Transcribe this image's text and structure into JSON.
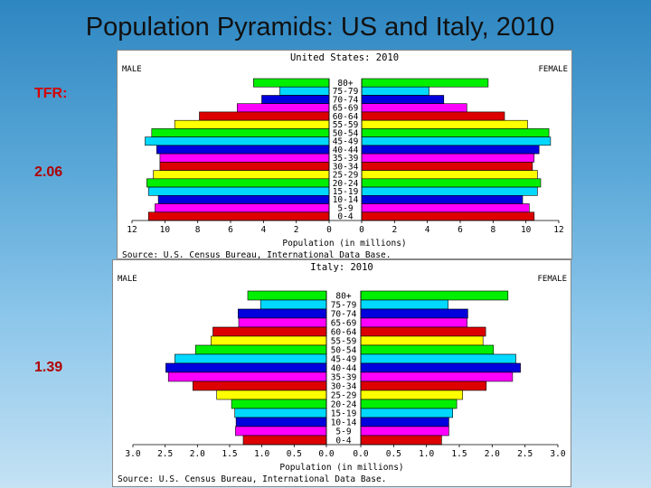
{
  "slide": {
    "title": "Population Pyramids: US and Italy, 2010",
    "labels": {
      "tfr": "TFR:",
      "us_tfr": "2.06",
      "italy_tfr": "1.39"
    },
    "colors": {
      "tfr_label": "#d40000",
      "us_tfr": "#b00000",
      "italy_tfr": "#b00000"
    }
  },
  "chart_data": [
    {
      "type": "bar",
      "title": "United States: 2010",
      "male_label": "MALE",
      "female_label": "FEMALE",
      "xlabel": "Population (in millions)",
      "source": "Source: U.S. Census Bureau, International Data Base.",
      "categories": [
        "80+",
        "75-79",
        "70-74",
        "65-69",
        "60-64",
        "55-59",
        "50-54",
        "45-49",
        "40-44",
        "35-39",
        "30-34",
        "25-29",
        "20-24",
        "15-19",
        "10-14",
        "5-9",
        "0-4"
      ],
      "series": [
        {
          "name": "MALE",
          "values": [
            4.6,
            3.0,
            4.1,
            5.6,
            7.9,
            9.4,
            10.8,
            11.2,
            10.5,
            10.3,
            10.3,
            10.7,
            11.1,
            11.0,
            10.4,
            10.6,
            11.0
          ]
        },
        {
          "name": "FEMALE",
          "values": [
            7.7,
            4.1,
            5.0,
            6.4,
            8.7,
            10.1,
            11.4,
            11.5,
            10.8,
            10.5,
            10.4,
            10.7,
            10.9,
            10.7,
            9.8,
            10.2,
            10.5
          ]
        }
      ],
      "xlim": [
        0,
        12
      ],
      "xticks": [
        "12",
        "10",
        "8",
        "6",
        "4",
        "2",
        "0",
        "0",
        "2",
        "4",
        "6",
        "8",
        "10",
        "12"
      ],
      "colors": [
        "#00ee00",
        "#00d8ff",
        "#0000dd",
        "#ff00ff",
        "#dd0000",
        "#ffff00",
        "#00ee00",
        "#00d8ff",
        "#0000dd",
        "#ff00ff",
        "#dd0000",
        "#ffff00",
        "#00ee00",
        "#00d8ff",
        "#0000dd",
        "#ff00ff",
        "#dd0000"
      ]
    },
    {
      "type": "bar",
      "title": "Italy: 2010",
      "male_label": "MALE",
      "female_label": "FEMALE",
      "xlabel": "Population (in millions)",
      "source": "Source: U.S. Census Bureau, International Data Base.",
      "categories": [
        "80+",
        "75-79",
        "70-74",
        "65-69",
        "60-64",
        "55-59",
        "50-54",
        "45-49",
        "40-44",
        "35-39",
        "30-34",
        "25-29",
        "20-24",
        "15-19",
        "10-14",
        "5-9",
        "0-4"
      ],
      "series": [
        {
          "name": "MALE",
          "values": [
            1.22,
            1.02,
            1.37,
            1.36,
            1.76,
            1.79,
            2.03,
            2.35,
            2.49,
            2.45,
            2.07,
            1.7,
            1.47,
            1.42,
            1.4,
            1.41,
            1.29
          ]
        },
        {
          "name": "FEMALE",
          "values": [
            2.24,
            1.33,
            1.63,
            1.62,
            1.9,
            1.86,
            2.02,
            2.36,
            2.43,
            2.31,
            1.91,
            1.55,
            1.46,
            1.4,
            1.34,
            1.34,
            1.23
          ]
        }
      ],
      "xlim": [
        0,
        3.0
      ],
      "xticks": [
        "3.0",
        "2.5",
        "2.0",
        "1.5",
        "1.0",
        "0.5",
        "0.0",
        "0.0",
        "0.5",
        "1.0",
        "1.5",
        "2.0",
        "2.5",
        "3.0"
      ],
      "colors": [
        "#00ee00",
        "#00d8ff",
        "#0000dd",
        "#ff00ff",
        "#dd0000",
        "#ffff00",
        "#00ee00",
        "#00d8ff",
        "#0000dd",
        "#ff00ff",
        "#dd0000",
        "#ffff00",
        "#00ee00",
        "#00d8ff",
        "#0000dd",
        "#ff00ff",
        "#dd0000"
      ]
    }
  ]
}
